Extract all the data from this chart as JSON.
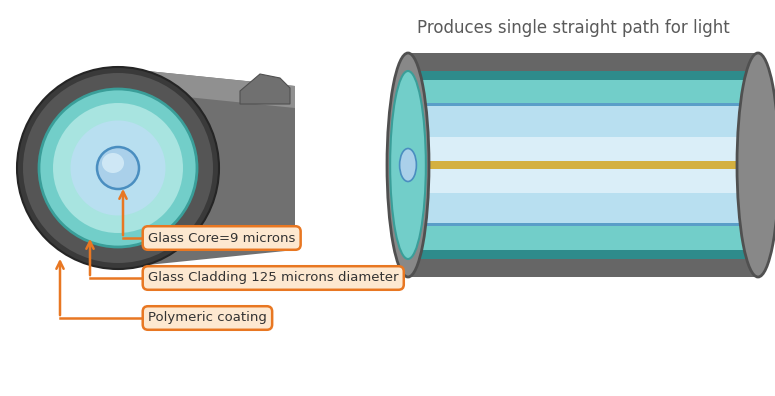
{
  "title": "Produces single straight path for light",
  "title_color": "#5a5a5a",
  "title_fontsize": 12,
  "background_color": "#ffffff",
  "orange_color": "#e87722",
  "label1": "Glass Core=9 microns",
  "label2": "Glass Cladding 125 microns diameter",
  "label3": "Polymeric coating",
  "label_bg": "#fde8d0",
  "fiber_colors": {
    "outer_coating": "#707070",
    "outer_coating_light": "#909090",
    "cladding_teal": "#72cec9",
    "cladding_dark_teal": "#3a9e99",
    "core_light_blue": "#b8dff0",
    "core_blue": "#6aaed6",
    "core_blue_edge": "#4a8ec0",
    "highlight_white": "#e0f0f8",
    "yellow_line": "#d4b040",
    "blue_line": "#5a9ec8",
    "teal_band": "#2e8b8b"
  }
}
